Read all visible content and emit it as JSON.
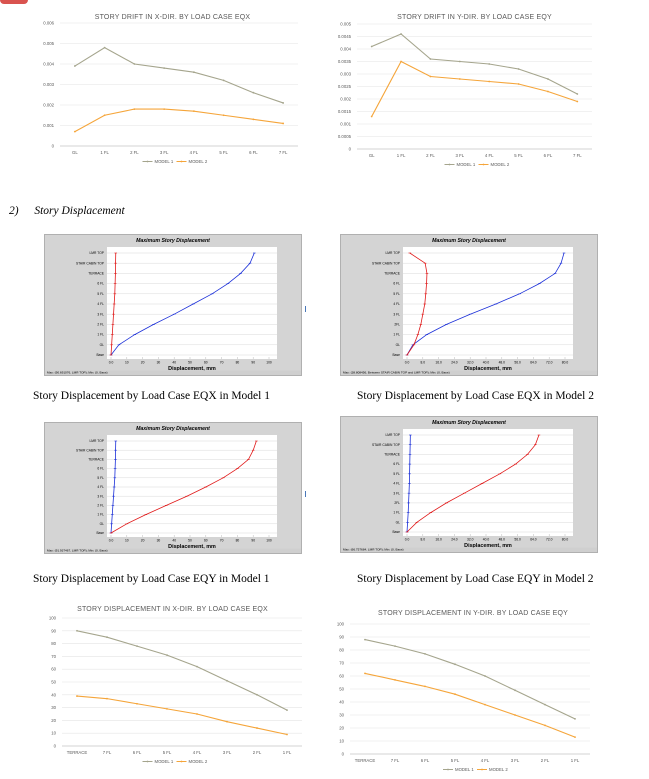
{
  "drift_x": {
    "title": "STORY DRIFT IN X-DIR. BY LOAD CASE EQX",
    "chart_data": {
      "type": "line",
      "categories": [
        "GL",
        "1 FL",
        "2 FL",
        "3 FL",
        "4 FL",
        "5 FL",
        "6 FL",
        "7 FL"
      ],
      "yticks": [
        "0",
        "0.001",
        "0.002",
        "0.003",
        "0.004",
        "0.005",
        "0.006"
      ],
      "ylim": [
        0,
        0.006
      ],
      "series": [
        {
          "name": "MODEL 1",
          "color": "#a5a58d",
          "values": [
            0.0039,
            0.0048,
            0.004,
            0.0038,
            0.0036,
            0.0032,
            0.0026,
            0.0021
          ]
        },
        {
          "name": "MODEL 2",
          "color": "#f5a53a",
          "values": [
            0.0007,
            0.0015,
            0.0018,
            0.0018,
            0.0017,
            0.0015,
            0.0013,
            0.0011
          ]
        }
      ]
    }
  },
  "drift_y": {
    "title": "STORY DRIFT IN Y-DIR. BY LOAD CASE EQY",
    "chart_data": {
      "type": "line",
      "categories": [
        "GL",
        "1 FL",
        "2 FL",
        "3 FL",
        "4 FL",
        "5 FL",
        "6 FL",
        "7 FL"
      ],
      "yticks": [
        "0",
        "0.0005",
        "0.001",
        "0.0015",
        "0.002",
        "0.0025",
        "0.003",
        "0.0035",
        "0.004",
        "0.0045",
        "0.005"
      ],
      "ylim": [
        0,
        0.005
      ],
      "series": [
        {
          "name": "MODEL 1",
          "color": "#a5a58d",
          "values": [
            0.0041,
            0.0046,
            0.0036,
            0.0035,
            0.0034,
            0.0032,
            0.0028,
            0.0022
          ]
        },
        {
          "name": "MODEL 2",
          "color": "#f5a53a",
          "values": [
            0.0013,
            0.0035,
            0.0029,
            0.0028,
            0.0027,
            0.0026,
            0.0023,
            0.0019
          ]
        }
      ]
    }
  },
  "section_heading": {
    "number": "2)",
    "title": "Story Displacement"
  },
  "etabs": {
    "header": "Maximum Story Displacement",
    "xaxis": "Displacement, mm",
    "story_labels": [
      "LMR TOP",
      "STAIR CABIN TOP",
      "TERRACE",
      "6 FL",
      "5 FL",
      "4 FL",
      "3 FL",
      "2 FL",
      "1 FL",
      "GL",
      "Base"
    ],
    "story_labels_m2": [
      "LMR TOP",
      "STAIR CABIN TOP",
      "TERRACE",
      "6 FL",
      "5 FL",
      "4 FL",
      "3 FL",
      "2FL",
      "1 FL",
      "GL",
      "Base"
    ],
    "ticks_m1": [
      "0.0",
      "10",
      "20",
      "30",
      "40",
      "50",
      "60",
      "70",
      "80",
      "90",
      "100"
    ],
    "ticks_m2": [
      "0.0",
      "8.0",
      "16.0",
      "24.0",
      "32.0",
      "40.0",
      "48.0",
      "56.0",
      "64.0",
      "72.0",
      "80.0"
    ],
    "panels": [
      {
        "status": "Max: (90.691076, LMR TOP); Min: (0, Base)",
        "caption": "Story Displacement by Load Case EQX in Model 1"
      },
      {
        "status": "Max: (38.808456, Between STAIR CABIN TOP and LMR TOP); Min: (0, Base)",
        "caption": "Story Displacement by Load Case EQX in Model 2"
      },
      {
        "status": "Max: (91.937467, LMR TOP); Min: (0, Base)",
        "caption": "Story Displacement by Load Case EQY in Model 1"
      },
      {
        "status": "Max: (66.757684, LMR TOP); Min: (0, Base)",
        "caption": "Story Displacement by Load Case EQY in Model 2"
      }
    ]
  },
  "disp_x": {
    "title": "STORY DISPLACEMENT IN X-DIR. BY LOAD CASE EQX",
    "chart_data": {
      "type": "line",
      "categories": [
        "TERRACE",
        "7 FL",
        "6 FL",
        "5 FL",
        "4 FL",
        "3 FL",
        "2 FL",
        "1 FL"
      ],
      "yticks": [
        "0",
        "10",
        "20",
        "30",
        "40",
        "50",
        "60",
        "70",
        "80",
        "90",
        "100"
      ],
      "ylim": [
        0,
        100
      ],
      "series": [
        {
          "name": "MODEL 1",
          "color": "#a5a58d",
          "values": [
            90,
            85,
            78,
            71,
            62,
            51,
            40,
            28
          ]
        },
        {
          "name": "MODEL 2",
          "color": "#f5a53a",
          "values": [
            39,
            37,
            33,
            29,
            25,
            19,
            14,
            9
          ]
        }
      ]
    }
  },
  "disp_y": {
    "title": "STORY DISPLACEMENT IN Y-DIR. BY LOAD CASE EQY",
    "chart_data": {
      "type": "line",
      "categories": [
        "TERRACE",
        "7 FL",
        "6 FL",
        "5 FL",
        "4 FL",
        "3 FL",
        "2 FL",
        "1 FL"
      ],
      "yticks": [
        "0",
        "10",
        "20",
        "30",
        "40",
        "50",
        "60",
        "70",
        "80",
        "90",
        "100"
      ],
      "ylim": [
        0,
        100
      ],
      "series": [
        {
          "name": "MODEL 1",
          "color": "#a5a58d",
          "values": [
            88,
            83,
            77,
            69,
            60,
            49,
            38,
            27
          ]
        },
        {
          "name": "MODEL 2",
          "color": "#f5a53a",
          "values": [
            62,
            57,
            52,
            46,
            38,
            30,
            22,
            13
          ]
        }
      ]
    }
  }
}
